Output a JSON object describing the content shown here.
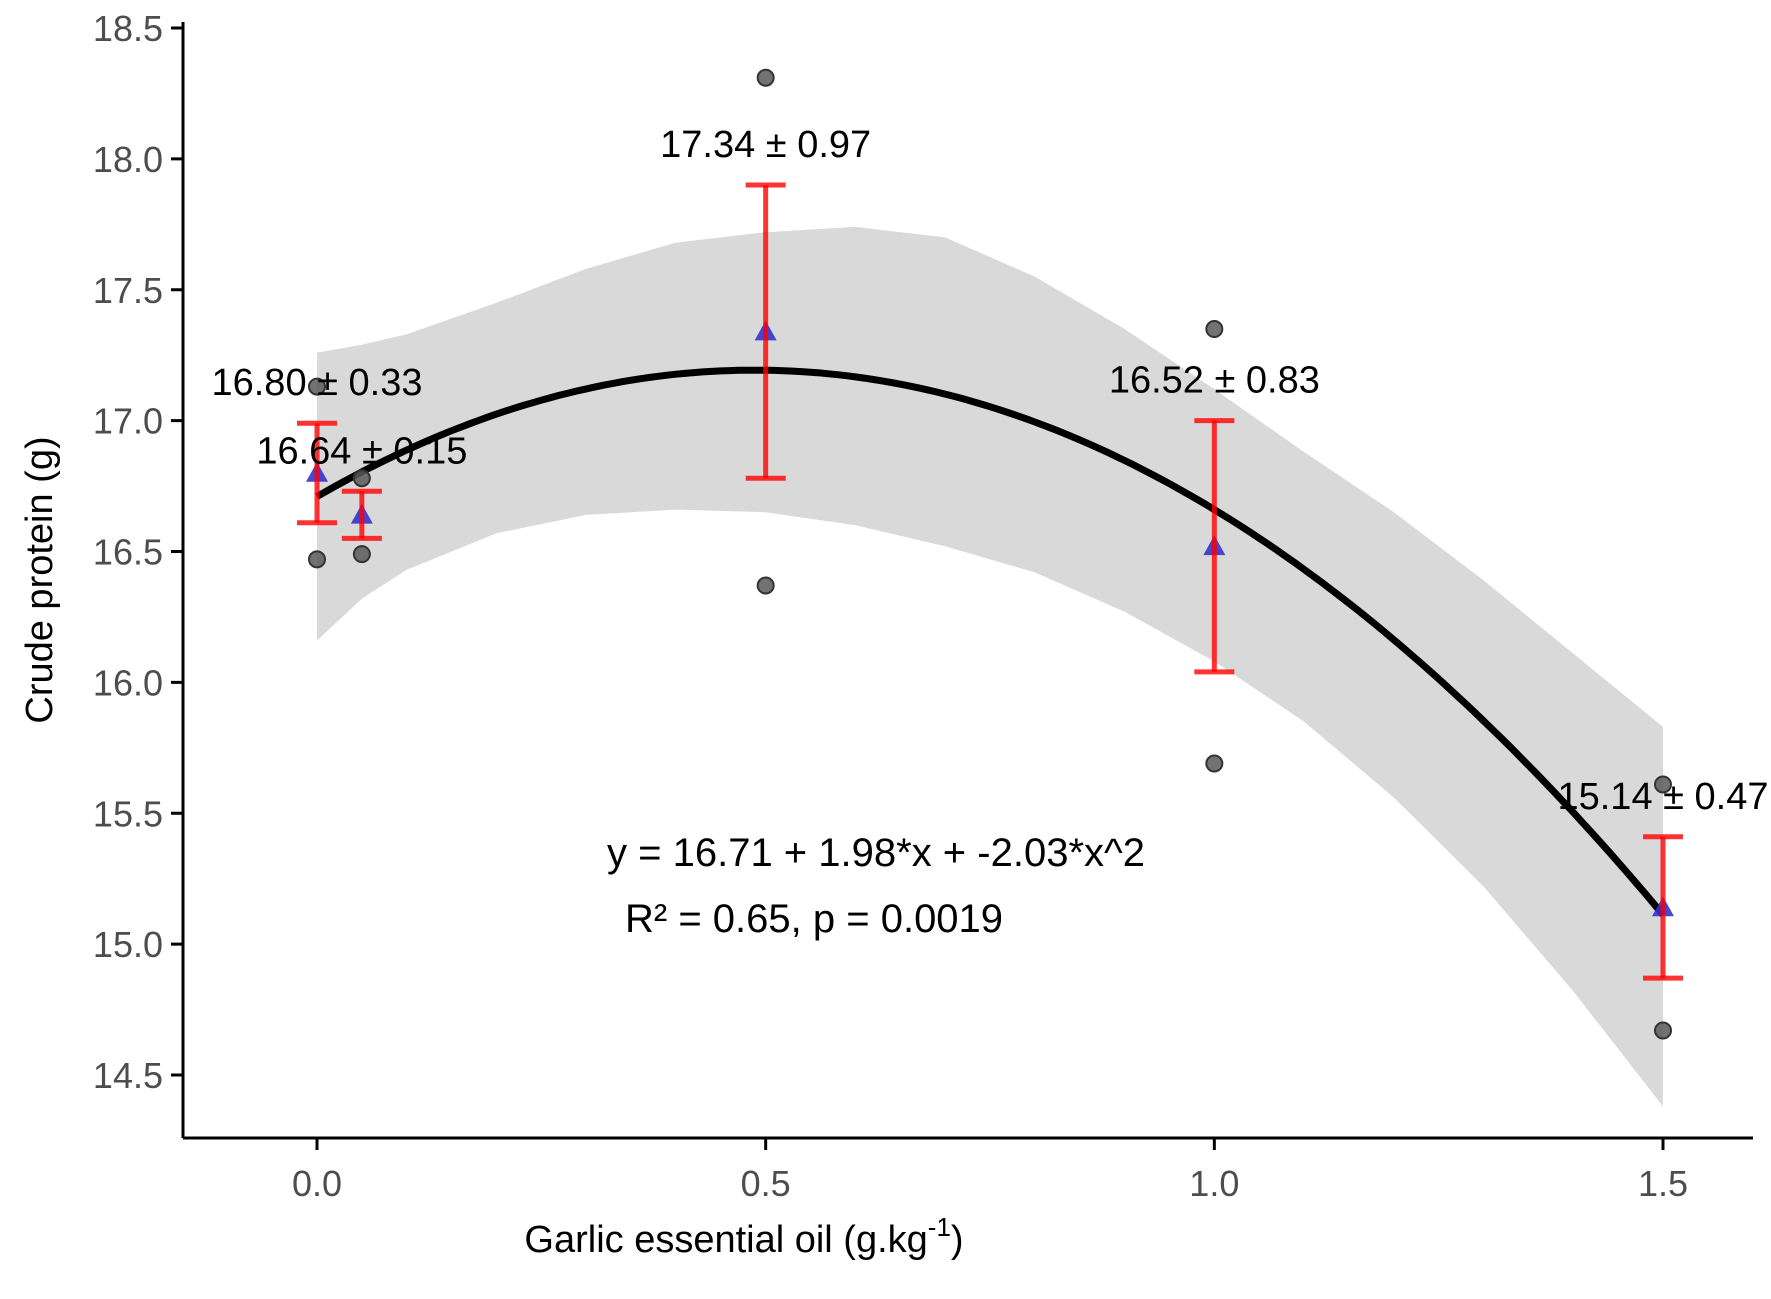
{
  "chart_data": {
    "type": "scatter",
    "xlabel": "Garlic essential oil (g.kg",
    "xlabel_sup": "-1",
    "xlabel_end": ")",
    "ylabel": "Crude protein (g)",
    "xlim": [
      -0.15,
      1.62
    ],
    "ylim": [
      14.18,
      18.5
    ],
    "x_ticks": [
      0.0,
      0.5,
      1.0,
      1.5
    ],
    "x_tick_labels": [
      "0.0",
      "0.5",
      "1.0",
      "1.5"
    ],
    "y_ticks": [
      14.5,
      15.0,
      15.5,
      16.0,
      16.5,
      17.0,
      17.5,
      18.0,
      18.5
    ],
    "y_tick_labels": [
      "14.5",
      "15.0",
      "15.5",
      "16.0",
      "16.5",
      "17.0",
      "17.5",
      "18.0",
      "18.5"
    ],
    "grid": false,
    "observations": [
      {
        "x": 0.0,
        "y": 17.13
      },
      {
        "x": 0.0,
        "y": 16.47
      },
      {
        "x": 0.05,
        "y": 16.78
      },
      {
        "x": 0.05,
        "y": 16.49
      },
      {
        "x": 0.5,
        "y": 18.31
      },
      {
        "x": 0.5,
        "y": 16.37
      },
      {
        "x": 1.0,
        "y": 17.35
      },
      {
        "x": 1.0,
        "y": 15.69
      },
      {
        "x": 1.5,
        "y": 15.61
      },
      {
        "x": 1.5,
        "y": 14.67
      }
    ],
    "means": [
      {
        "x": 0.0,
        "mean": 16.8,
        "lower": 16.61,
        "upper": 16.99,
        "label": "16.80 ± 0.33"
      },
      {
        "x": 0.05,
        "mean": 16.64,
        "lower": 16.55,
        "upper": 16.73,
        "label": "16.64 ± 0.15"
      },
      {
        "x": 0.5,
        "mean": 17.34,
        "lower": 16.78,
        "upper": 17.9,
        "label": "17.34 ± 0.97"
      },
      {
        "x": 1.0,
        "mean": 16.52,
        "lower": 16.04,
        "upper": 17.0,
        "label": "16.52 ± 0.83"
      },
      {
        "x": 1.5,
        "mean": 15.14,
        "lower": 14.87,
        "upper": 15.41,
        "label": "15.14 ± 0.47"
      }
    ],
    "fit": {
      "coefficients": [
        16.71,
        1.98,
        -2.03
      ],
      "x_range": [
        0.0,
        1.5
      ],
      "equation": "y = 16.71 + 1.98*x + -2.03*x^2",
      "stats": "R² = 0.65, p = 0.0019"
    },
    "confidence_band": [
      {
        "x": 0.0,
        "lower": 16.16,
        "upper": 17.26
      },
      {
        "x": 0.05,
        "lower": 16.32,
        "upper": 17.29
      },
      {
        "x": 0.1,
        "lower": 16.43,
        "upper": 17.33
      },
      {
        "x": 0.2,
        "lower": 16.57,
        "upper": 17.45
      },
      {
        "x": 0.3,
        "lower": 16.64,
        "upper": 17.58
      },
      {
        "x": 0.4,
        "lower": 16.66,
        "upper": 17.68
      },
      {
        "x": 0.5,
        "lower": 16.65,
        "upper": 17.72
      },
      {
        "x": 0.6,
        "lower": 16.6,
        "upper": 17.74
      },
      {
        "x": 0.7,
        "lower": 16.52,
        "upper": 17.7
      },
      {
        "x": 0.8,
        "lower": 16.42,
        "upper": 17.55
      },
      {
        "x": 0.9,
        "lower": 16.27,
        "upper": 17.35
      },
      {
        "x": 1.0,
        "lower": 16.08,
        "upper": 17.12
      },
      {
        "x": 1.1,
        "lower": 15.85,
        "upper": 16.88
      },
      {
        "x": 1.2,
        "lower": 15.56,
        "upper": 16.65
      },
      {
        "x": 1.3,
        "lower": 15.22,
        "upper": 16.39
      },
      {
        "x": 1.4,
        "lower": 14.82,
        "upper": 16.11
      },
      {
        "x": 1.5,
        "lower": 14.38,
        "upper": 15.83
      }
    ],
    "colors": {
      "observation": "#595959",
      "mean_marker": "#3333cc",
      "error_bar": "#ff0000",
      "fit_line": "#000000",
      "band": "#d9d9d9",
      "axis": "#000000"
    }
  }
}
